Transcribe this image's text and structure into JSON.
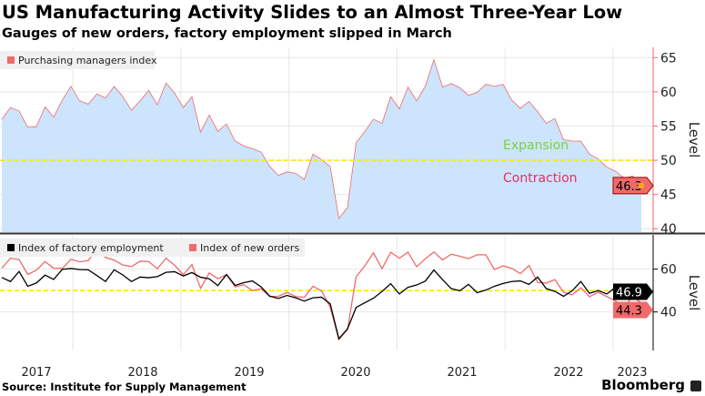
{
  "title": "US Manufacturing Activity Slides to an Almost Three-Year Low",
  "subtitle": "Gauges of new orders, factory employment slipped in March",
  "source": "Source: Institute for Supply Management",
  "brand": "Bloomberg",
  "chart_data": [
    {
      "type": "area",
      "ylabel": "Level",
      "ylim": [
        39.5,
        66.5
      ],
      "yticks": [
        40,
        45,
        50,
        55,
        60,
        65
      ],
      "grid": true,
      "legend": "top-left",
      "x_start": "2017-01",
      "frequency": "monthly",
      "reference_line": 50,
      "annotations": [
        "Expansion",
        "Contraction"
      ],
      "last_value_label": "46.3",
      "series": [
        {
          "name": "Purchasing managers index",
          "color": "#f06a6a",
          "fill": "#cce4fc",
          "values": [
            56.0,
            57.7,
            57.2,
            54.8,
            54.9,
            57.8,
            56.3,
            58.8,
            60.8,
            58.7,
            58.2,
            59.7,
            59.1,
            60.8,
            59.3,
            57.3,
            58.7,
            60.2,
            58.1,
            61.3,
            59.8,
            57.7,
            59.3,
            54.1,
            56.6,
            54.2,
            55.3,
            52.8,
            52.1,
            51.7,
            51.2,
            49.1,
            47.8,
            48.3,
            48.1,
            47.2,
            50.9,
            50.1,
            49.1,
            41.5,
            43.1,
            52.6,
            54.2,
            56.0,
            55.4,
            59.3,
            57.5,
            60.7,
            58.7,
            60.8,
            64.7,
            60.7,
            61.2,
            60.6,
            59.5,
            59.9,
            61.1,
            60.8,
            61.1,
            58.8,
            57.6,
            58.6,
            57.1,
            55.4,
            56.1,
            53.0,
            52.8,
            52.8,
            50.9,
            50.2,
            49.0,
            48.4,
            47.4,
            47.7,
            46.3
          ]
        }
      ]
    },
    {
      "type": "line",
      "ylabel": "Level",
      "ylim": [
        22,
        76
      ],
      "yticks": [
        40,
        60
      ],
      "grid": true,
      "legend": "top-left",
      "x_start": "2017-01",
      "frequency": "monthly",
      "reference_line": 50,
      "xticks": [
        "2017",
        "2018",
        "2019",
        "2020",
        "2021",
        "2022",
        "2023"
      ],
      "series": [
        {
          "name": "Index of factory employment",
          "color": "#000000",
          "last_value_label": "46.9",
          "values": [
            56.1,
            54.2,
            58.9,
            52.0,
            53.5,
            57.2,
            55.2,
            59.9,
            60.3,
            59.8,
            59.7,
            57.0,
            54.2,
            59.7,
            57.3,
            54.2,
            56.3,
            56.0,
            56.5,
            58.5,
            58.8,
            56.8,
            58.4,
            56.2,
            55.5,
            52.3,
            57.5,
            52.4,
            53.7,
            54.5,
            51.7,
            47.4,
            46.3,
            47.7,
            46.6,
            45.1,
            46.6,
            46.9,
            43.8,
            27.5,
            32.1,
            42.1,
            44.3,
            46.4,
            49.6,
            53.2,
            48.4,
            51.5,
            52.6,
            54.4,
            59.6,
            55.1,
            50.9,
            49.9,
            52.9,
            49.0,
            50.2,
            52.0,
            53.3,
            54.2,
            54.5,
            52.9,
            56.3,
            50.9,
            49.6,
            47.3,
            49.9,
            54.2,
            48.7,
            50.0,
            48.4,
            51.4,
            50.6,
            49.1,
            46.9
          ]
        },
        {
          "name": "Index of new orders",
          "color": "#f06a6a",
          "last_value_label": "44.3",
          "values": [
            60.4,
            65.1,
            64.5,
            57.5,
            59.5,
            63.5,
            60.4,
            60.3,
            64.6,
            63.4,
            64.0,
            69.4,
            65.4,
            64.2,
            61.9,
            61.2,
            63.7,
            63.5,
            60.2,
            65.1,
            61.8,
            57.4,
            62.1,
            51.1,
            58.2,
            55.5,
            57.4,
            51.7,
            52.7,
            50.0,
            50.8,
            47.2,
            47.3,
            49.1,
            47.2,
            46.8,
            52.0,
            49.8,
            42.2,
            27.1,
            31.8,
            56.4,
            61.5,
            67.6,
            60.2,
            67.9,
            65.1,
            67.9,
            61.1,
            64.8,
            68.0,
            64.3,
            67.0,
            66.0,
            64.9,
            66.7,
            66.7,
            59.8,
            61.5,
            60.4,
            57.9,
            61.7,
            53.8,
            53.5,
            55.1,
            49.2,
            48.0,
            51.3,
            47.1,
            49.2,
            47.2,
            45.2,
            42.5,
            47.0,
            44.3
          ]
        }
      ]
    }
  ]
}
